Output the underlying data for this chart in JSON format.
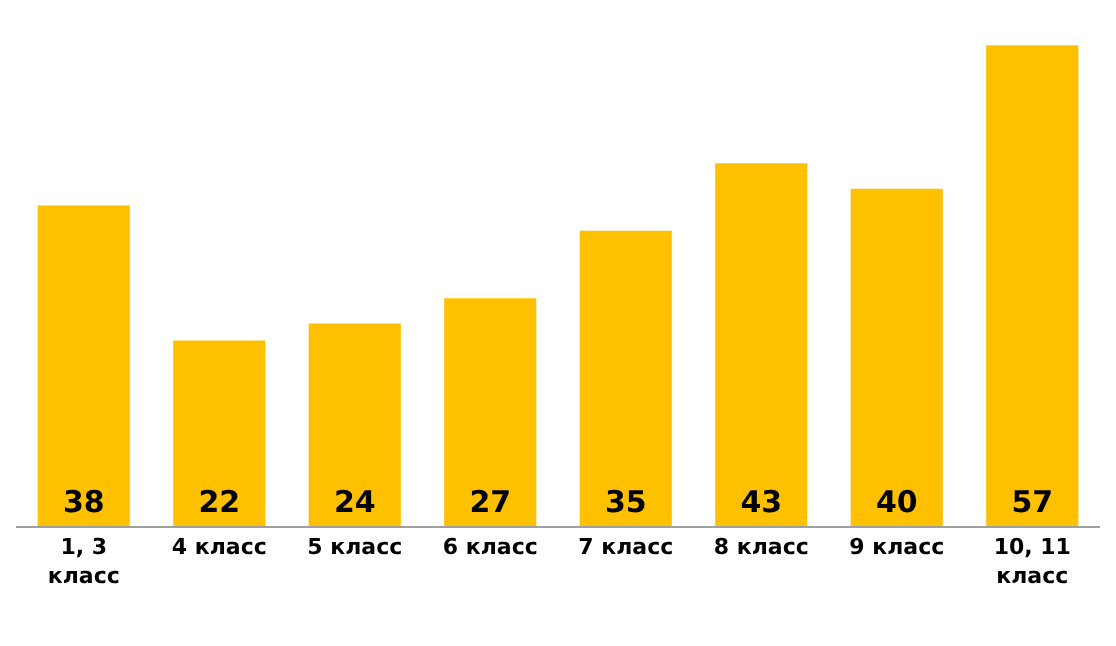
{
  "chart_data": {
    "type": "bar",
    "categories": [
      "1, 3 класс",
      "4 класс",
      "5 класс",
      "6 класс",
      "7 класс",
      "8 класс",
      "9 класс",
      "10, 11 класс"
    ],
    "values": [
      38,
      22,
      24,
      27,
      35,
      43,
      40,
      57
    ],
    "color": "#ffc000",
    "data_labels": true
  }
}
